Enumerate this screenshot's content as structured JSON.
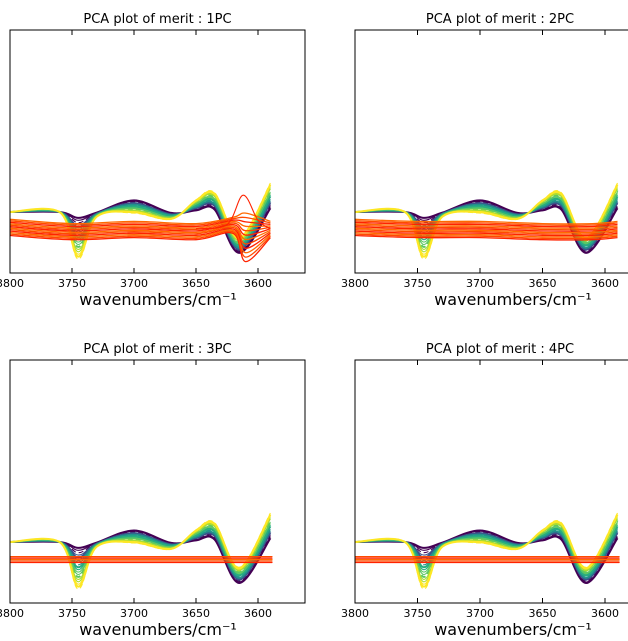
{
  "chart_data": [
    {
      "type": "line",
      "title": "PCA plot of merit : 1PC",
      "xlabel": "wavenumbers/cm⁻¹",
      "ylabel": "",
      "xlim": [
        3800,
        3585
      ],
      "x_ticks": [
        "3800",
        "3750",
        "3700",
        "3650",
        "3600"
      ],
      "x_reversed": true,
      "y_ticks_shown": false,
      "panel": "1PC",
      "series": [
        {
          "group": "original spectra (viridis colormap, dark blue to yellow)",
          "x": [
            3800,
            3760,
            3745,
            3730,
            3700,
            3670,
            3650,
            3635,
            3615,
            3590
          ],
          "values": [
            0,
            0,
            -0.7,
            -0.1,
            0.05,
            -0.15,
            0.25,
            0.4,
            -0.75,
            0.6
          ]
        },
        {
          "group": "reconstructed spectra (red-orange)",
          "x": [
            3800,
            3750,
            3700,
            3650,
            3620,
            3610,
            3590
          ],
          "values": [
            -0.35,
            -0.45,
            -0.4,
            -0.45,
            -0.3,
            -0.55,
            -0.4
          ]
        }
      ]
    },
    {
      "type": "line",
      "title": "PCA plot of merit : 2PC",
      "xlabel": "wavenumbers/cm⁻¹",
      "ylabel": "",
      "xlim": [
        3800,
        3590
      ],
      "x_ticks": [
        "3800",
        "3750",
        "3700",
        "3650",
        "3600"
      ],
      "x_reversed": true,
      "y_ticks_shown": false,
      "panel": "2PC",
      "series": [
        {
          "group": "original spectra (viridis colormap, dark blue to yellow)",
          "x": [
            3800,
            3760,
            3745,
            3730,
            3700,
            3670,
            3650,
            3635,
            3615,
            3590
          ],
          "values": [
            0,
            0,
            -0.7,
            -0.1,
            0.05,
            -0.15,
            0.25,
            0.4,
            -0.75,
            0.6
          ]
        },
        {
          "group": "reconstructed spectra (red-orange)",
          "x": [
            3800,
            3750,
            3700,
            3650,
            3610,
            3590
          ],
          "values": [
            -0.35,
            -0.4,
            -0.4,
            -0.45,
            -0.45,
            -0.4
          ]
        }
      ]
    },
    {
      "type": "line",
      "title": "PCA plot of merit : 3PC",
      "xlabel": "wavenumbers/cm⁻¹",
      "ylabel": "",
      "xlim": [
        3800,
        3585
      ],
      "x_ticks": [
        "3800",
        "3750",
        "3700",
        "3650",
        "3600"
      ],
      "x_reversed": true,
      "y_ticks_shown": false,
      "panel": "3PC",
      "series": [
        {
          "group": "original spectra (viridis colormap, dark blue to yellow)",
          "x": [
            3800,
            3760,
            3745,
            3730,
            3700,
            3670,
            3650,
            3635,
            3615,
            3590
          ],
          "values": [
            0,
            0,
            -0.7,
            -0.1,
            0.05,
            -0.15,
            0.25,
            0.4,
            -0.75,
            0.6
          ]
        },
        {
          "group": "reconstructed spectra (red-orange)",
          "x": [
            3800,
            3700,
            3600,
            3590
          ],
          "values": [
            -0.4,
            -0.4,
            -0.4,
            -0.4
          ]
        }
      ]
    },
    {
      "type": "line",
      "title": "PCA plot of merit : 4PC",
      "xlabel": "wavenumbers/cm⁻¹",
      "ylabel": "",
      "xlim": [
        3800,
        3590
      ],
      "x_ticks": [
        "3800",
        "3750",
        "3700",
        "3650",
        "3600"
      ],
      "x_reversed": true,
      "y_ticks_shown": false,
      "panel": "4PC",
      "series": [
        {
          "group": "original spectra (viridis colormap, dark blue to yellow)",
          "x": [
            3800,
            3760,
            3745,
            3730,
            3700,
            3670,
            3650,
            3635,
            3615,
            3590
          ],
          "values": [
            0,
            0,
            -0.7,
            -0.1,
            0.05,
            -0.15,
            0.25,
            0.4,
            -0.75,
            0.6
          ]
        },
        {
          "group": "reconstructed spectra (red-orange)",
          "x": [
            3800,
            3700,
            3600,
            3590
          ],
          "values": [
            -0.4,
            -0.4,
            -0.4,
            -0.4
          ]
        }
      ]
    }
  ],
  "colors": {
    "viridis": [
      "#440154",
      "#3b528b",
      "#21908c",
      "#27ad81",
      "#5dc863",
      "#aadc32",
      "#fde725"
    ],
    "reconstruction": [
      "#ff2200",
      "#ff4a00",
      "#ff6a00"
    ],
    "axes": "#000000",
    "background": "#ffffff"
  }
}
